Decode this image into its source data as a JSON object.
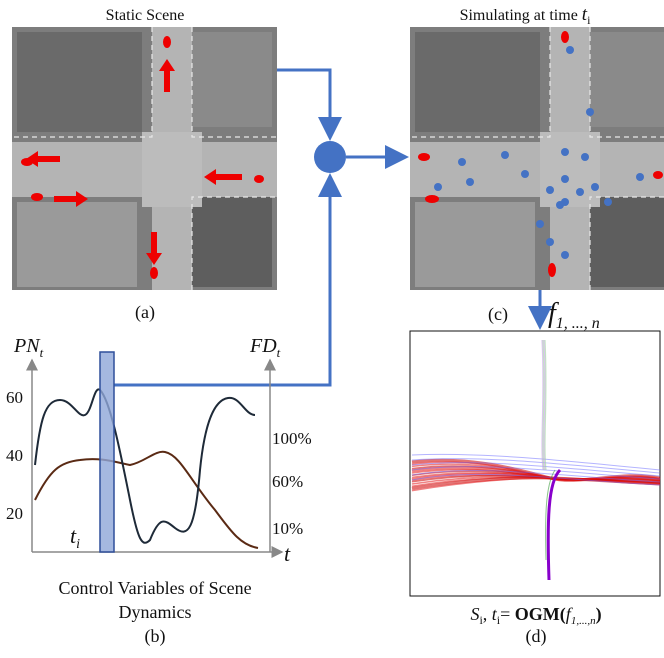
{
  "panel_a": {
    "title": "Static Scene",
    "label": "(a)"
  },
  "panel_b": {
    "left_axis": {
      "label": "PN",
      "sub": "t",
      "ticks": [
        "60",
        "40",
        "20"
      ]
    },
    "right_axis": {
      "label": "FD",
      "sub": "t",
      "ticks": [
        "100%",
        "60%",
        "10%"
      ]
    },
    "marker": {
      "label": "t",
      "sub": "i"
    },
    "x_axis_label": "t",
    "caption": "Control Variables of Scene Dynamics",
    "label": "(b)"
  },
  "panel_c": {
    "title": "Simulating at time ",
    "title_var": "t",
    "title_sub": "i",
    "label": "(c)",
    "output": "f",
    "output_sub": "1, ..., n"
  },
  "panel_d": {
    "formula": [
      "S",
      "i",
      ", ",
      "t",
      "i",
      "= ",
      "OGM(",
      "f",
      "1,...,n",
      ")"
    ],
    "label": "(d)"
  }
}
